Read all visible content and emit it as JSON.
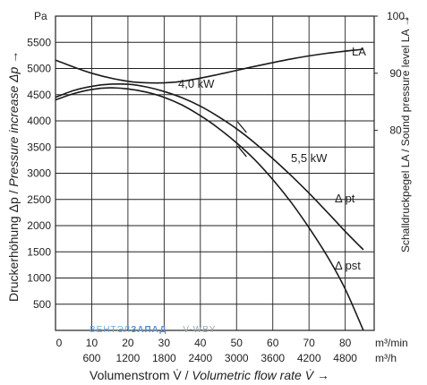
{
  "chart_data": {
    "type": "line",
    "y_unit": "Pa",
    "y_ticks": [
      500,
      1000,
      1500,
      2000,
      2500,
      3000,
      3500,
      4000,
      4500,
      5000,
      5500
    ],
    "ylim": [
      0,
      6000
    ],
    "x_ticks_m3min": [
      0,
      10,
      20,
      30,
      40,
      50,
      60,
      70,
      80
    ],
    "x_ticks_m3h": [
      "600",
      "1200",
      "1800",
      "2400",
      "3000",
      "3600",
      "4200",
      "4800"
    ],
    "xlim": [
      0,
      88
    ],
    "x_unit_1": "m³/min",
    "x_unit_2": "m³/h",
    "xlabel_de": "Volumenstrom V̇ / ",
    "xlabel_en": "Volumetric flow rate V̇ →",
    "ylabel_de": "Druckerhöhung Δp / ",
    "ylabel_en": "Pressure increase Δp →",
    "y2_ticks": [
      "100",
      "90",
      "80"
    ],
    "y2_values": [
      100,
      90,
      80
    ],
    "y2_lim": [
      45,
      100
    ],
    "y2_arrow": "→",
    "y2label": "Schalldruckpegel LA / Sound pressure level LA →",
    "grid": true,
    "annotations": {
      "power_1": "4,0 kW",
      "power_2": "5,5 kW",
      "la": "LA",
      "pt": "Δ pt",
      "pst": "Δ pst"
    },
    "series": [
      {
        "name": "Δ pt",
        "axis": "left",
        "x": [
          0,
          5,
          10,
          15,
          20,
          25,
          30,
          35,
          40,
          45,
          50,
          55,
          60,
          65,
          70,
          75,
          80,
          85
        ],
        "y": [
          4450,
          4580,
          4660,
          4700,
          4700,
          4650,
          4560,
          4440,
          4280,
          4080,
          3850,
          3580,
          3280,
          2960,
          2620,
          2260,
          1890,
          1540
        ]
      },
      {
        "name": "Δ pst",
        "axis": "left",
        "x": [
          0,
          5,
          10,
          15,
          20,
          25,
          30,
          35,
          40,
          45,
          50,
          55,
          60,
          65,
          70,
          75,
          80,
          85
        ],
        "y": [
          4400,
          4520,
          4600,
          4630,
          4610,
          4550,
          4450,
          4300,
          4100,
          3860,
          3580,
          3260,
          2880,
          2450,
          1960,
          1420,
          790,
          0
        ]
      },
      {
        "name": "LA",
        "axis": "right",
        "x": [
          0,
          10,
          20,
          28,
          35,
          45,
          55,
          65,
          75,
          85
        ],
        "y": [
          92.3,
          90.0,
          88.6,
          88.3,
          88.6,
          89.8,
          91.2,
          92.5,
          93.5,
          94.2
        ]
      }
    ],
    "markers": [
      {
        "series": 0,
        "x": 51.5,
        "y": 3880
      },
      {
        "series": 1,
        "x": 51.5,
        "y": 3420
      }
    ]
  },
  "watermark": {
    "part1": "ВЕНТЭЛ",
    "part2": "ЗАПАД",
    "part3": "V-WBY"
  },
  "colors": {
    "curve": "#1a1a1a",
    "grid": "#222222",
    "watermark_blue": "#6fa8dc",
    "watermark_gray": "#9aa8b5"
  }
}
